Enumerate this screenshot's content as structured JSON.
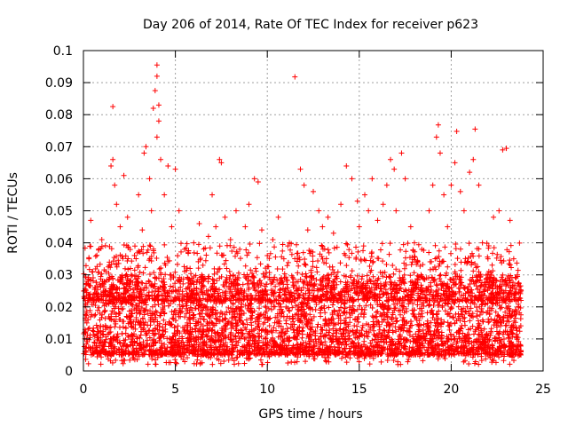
{
  "chart_data": {
    "type": "scatter",
    "title": "Day 206 of 2014, Rate Of TEC Index for receiver p623",
    "xlabel": "GPS time / hours",
    "ylabel": "ROTI / TECUs",
    "xlim": [
      0,
      25
    ],
    "ylim": [
      0,
      0.1
    ],
    "grid": true,
    "legend": "none",
    "marker": "+",
    "color": "#ff0000",
    "x_ticks": [
      0,
      5,
      10,
      15,
      20,
      25
    ],
    "x_tick_labels": [
      "0",
      "5",
      "10",
      "15",
      "20",
      "25"
    ],
    "y_ticks": [
      0,
      0.01,
      0.02,
      0.03,
      0.04,
      0.05,
      0.06,
      0.07,
      0.08,
      0.09,
      0.1
    ],
    "y_tick_labels": [
      "0",
      "0.01",
      "0.02",
      "0.03",
      "0.04",
      "0.05",
      "0.06",
      "0.07",
      "0.08",
      "0.09",
      "0.1"
    ],
    "series": [
      {
        "name": "ROTI",
        "points": [
          [
            0.1,
            0.012
          ],
          [
            0.2,
            0.028
          ],
          [
            0.3,
            0.035
          ],
          [
            0.4,
            0.047
          ],
          [
            0.5,
            0.031
          ],
          [
            0.7,
            0.022
          ],
          [
            0.9,
            0.018
          ],
          [
            1.0,
            0.041
          ],
          [
            1.2,
            0.025
          ],
          [
            1.4,
            0.033
          ],
          [
            1.5,
            0.064
          ],
          [
            1.6,
            0.066
          ],
          [
            1.6,
            0.0825
          ],
          [
            1.7,
            0.058
          ],
          [
            1.8,
            0.052
          ],
          [
            2.0,
            0.045
          ],
          [
            2.2,
            0.061
          ],
          [
            2.4,
            0.048
          ],
          [
            2.6,
            0.03
          ],
          [
            2.8,
            0.039
          ],
          [
            3.0,
            0.055
          ],
          [
            3.2,
            0.044
          ],
          [
            3.3,
            0.068
          ],
          [
            3.4,
            0.07
          ],
          [
            3.6,
            0.06
          ],
          [
            3.7,
            0.05
          ],
          [
            3.8,
            0.082
          ],
          [
            3.9,
            0.0875
          ],
          [
            4.0,
            0.092
          ],
          [
            4.0,
            0.0955
          ],
          [
            4.0,
            0.073
          ],
          [
            4.1,
            0.078
          ],
          [
            4.1,
            0.083
          ],
          [
            4.2,
            0.066
          ],
          [
            4.4,
            0.055
          ],
          [
            4.6,
            0.064
          ],
          [
            4.8,
            0.045
          ],
          [
            5.0,
            0.063
          ],
          [
            5.2,
            0.05
          ],
          [
            5.5,
            0.038
          ],
          [
            5.8,
            0.032
          ],
          [
            6.0,
            0.04
          ],
          [
            6.3,
            0.046
          ],
          [
            6.5,
            0.033
          ],
          [
            6.8,
            0.042
          ],
          [
            7.0,
            0.055
          ],
          [
            7.2,
            0.045
          ],
          [
            7.4,
            0.066
          ],
          [
            7.5,
            0.065
          ],
          [
            7.7,
            0.048
          ],
          [
            8.0,
            0.041
          ],
          [
            8.3,
            0.05
          ],
          [
            8.5,
            0.038
          ],
          [
            8.8,
            0.045
          ],
          [
            9.0,
            0.052
          ],
          [
            9.3,
            0.06
          ],
          [
            9.5,
            0.059
          ],
          [
            9.7,
            0.044
          ],
          [
            10.0,
            0.036
          ],
          [
            10.3,
            0.041
          ],
          [
            10.6,
            0.048
          ],
          [
            10.9,
            0.035
          ],
          [
            11.2,
            0.04
          ],
          [
            11.5,
            0.0918
          ],
          [
            11.8,
            0.063
          ],
          [
            12.0,
            0.058
          ],
          [
            12.2,
            0.044
          ],
          [
            12.5,
            0.056
          ],
          [
            12.8,
            0.05
          ],
          [
            13.0,
            0.045
          ],
          [
            13.3,
            0.048
          ],
          [
            13.6,
            0.043
          ],
          [
            14.0,
            0.052
          ],
          [
            14.3,
            0.064
          ],
          [
            14.6,
            0.06
          ],
          [
            14.9,
            0.053
          ],
          [
            15.0,
            0.045
          ],
          [
            15.3,
            0.055
          ],
          [
            15.5,
            0.05
          ],
          [
            15.7,
            0.06
          ],
          [
            16.0,
            0.047
          ],
          [
            16.3,
            0.052
          ],
          [
            16.5,
            0.058
          ],
          [
            16.7,
            0.066
          ],
          [
            16.9,
            0.063
          ],
          [
            17.0,
            0.05
          ],
          [
            17.3,
            0.068
          ],
          [
            17.5,
            0.06
          ],
          [
            17.8,
            0.045
          ],
          [
            18.0,
            0.04
          ],
          [
            18.4,
            0.038
          ],
          [
            18.8,
            0.05
          ],
          [
            19.0,
            0.058
          ],
          [
            19.2,
            0.073
          ],
          [
            19.3,
            0.0768
          ],
          [
            19.4,
            0.068
          ],
          [
            19.6,
            0.055
          ],
          [
            19.8,
            0.045
          ],
          [
            20.0,
            0.058
          ],
          [
            20.2,
            0.065
          ],
          [
            20.3,
            0.0748
          ],
          [
            20.5,
            0.056
          ],
          [
            20.7,
            0.05
          ],
          [
            21.0,
            0.062
          ],
          [
            21.2,
            0.066
          ],
          [
            21.3,
            0.0755
          ],
          [
            21.5,
            0.058
          ],
          [
            21.7,
            0.04
          ],
          [
            22.0,
            0.035
          ],
          [
            22.3,
            0.048
          ],
          [
            22.6,
            0.05
          ],
          [
            22.8,
            0.069
          ],
          [
            23.0,
            0.0695
          ],
          [
            23.2,
            0.047
          ],
          [
            23.4,
            0.035
          ],
          [
            23.6,
            0.03
          ],
          [
            23.8,
            0.025
          ]
        ],
        "dense_band": {
          "x_range": [
            0,
            23.8
          ],
          "typical_range": [
            0.005,
            0.03
          ],
          "min_observed": 0.002
        }
      }
    ]
  }
}
